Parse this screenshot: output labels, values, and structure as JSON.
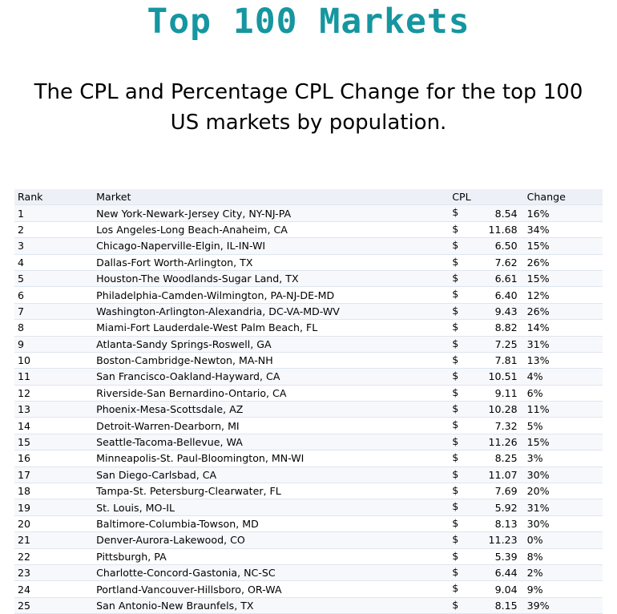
{
  "title": "Top 100 Markets",
  "subtitle_line1": "The CPL and Percentage CPL Change for the top 100",
  "subtitle_line2": "US markets by population.",
  "table": {
    "headers": {
      "rank": "Rank",
      "market": "Market",
      "cpl": "CPL",
      "change": "Change"
    },
    "currency_symbol": "$",
    "rows": [
      {
        "rank": "1",
        "market": "New York-Newark-Jersey City, NY-NJ-PA",
        "cpl": "8.54",
        "change": "16%"
      },
      {
        "rank": "2",
        "market": "Los Angeles-Long Beach-Anaheim, CA",
        "cpl": "11.68",
        "change": "34%"
      },
      {
        "rank": "3",
        "market": "Chicago-Naperville-Elgin, IL-IN-WI",
        "cpl": "6.50",
        "change": "15%"
      },
      {
        "rank": "4",
        "market": "Dallas-Fort Worth-Arlington, TX",
        "cpl": "7.62",
        "change": "26%"
      },
      {
        "rank": "5",
        "market": "Houston-The Woodlands-Sugar Land, TX",
        "cpl": "6.61",
        "change": "15%"
      },
      {
        "rank": "6",
        "market": "Philadelphia-Camden-Wilmington, PA-NJ-DE-MD",
        "cpl": "6.40",
        "change": "12%"
      },
      {
        "rank": "7",
        "market": "Washington-Arlington-Alexandria, DC-VA-MD-WV",
        "cpl": "9.43",
        "change": "26%"
      },
      {
        "rank": "8",
        "market": "Miami-Fort Lauderdale-West Palm Beach, FL",
        "cpl": "8.82",
        "change": "14%"
      },
      {
        "rank": "9",
        "market": "Atlanta-Sandy Springs-Roswell, GA",
        "cpl": "7.25",
        "change": "31%"
      },
      {
        "rank": "10",
        "market": "Boston-Cambridge-Newton, MA-NH",
        "cpl": "7.81",
        "change": "13%"
      },
      {
        "rank": "11",
        "market": "San Francisco-Oakland-Hayward, CA",
        "cpl": "10.51",
        "change": "4%"
      },
      {
        "rank": "12",
        "market": "Riverside-San Bernardino-Ontario, CA",
        "cpl": "9.11",
        "change": "6%"
      },
      {
        "rank": "13",
        "market": "Phoenix-Mesa-Scottsdale, AZ",
        "cpl": "10.28",
        "change": "11%"
      },
      {
        "rank": "14",
        "market": "Detroit-Warren-Dearborn, MI",
        "cpl": "7.32",
        "change": "5%"
      },
      {
        "rank": "15",
        "market": "Seattle-Tacoma-Bellevue, WA",
        "cpl": "11.26",
        "change": "15%"
      },
      {
        "rank": "16",
        "market": "Minneapolis-St. Paul-Bloomington, MN-WI",
        "cpl": "8.25",
        "change": "3%"
      },
      {
        "rank": "17",
        "market": "San Diego-Carlsbad, CA",
        "cpl": "11.07",
        "change": "30%"
      },
      {
        "rank": "18",
        "market": "Tampa-St. Petersburg-Clearwater, FL",
        "cpl": "7.69",
        "change": "20%"
      },
      {
        "rank": "19",
        "market": "St. Louis, MO-IL",
        "cpl": "5.92",
        "change": "31%"
      },
      {
        "rank": "20",
        "market": "Baltimore-Columbia-Towson, MD",
        "cpl": "8.13",
        "change": "30%"
      },
      {
        "rank": "21",
        "market": "Denver-Aurora-Lakewood, CO",
        "cpl": "11.23",
        "change": "0%"
      },
      {
        "rank": "22",
        "market": "Pittsburgh, PA",
        "cpl": "5.39",
        "change": "8%"
      },
      {
        "rank": "23",
        "market": "Charlotte-Concord-Gastonia, NC-SC",
        "cpl": "6.44",
        "change": "2%"
      },
      {
        "rank": "24",
        "market": "Portland-Vancouver-Hillsboro, OR-WA",
        "cpl": "9.04",
        "change": "9%"
      },
      {
        "rank": "25",
        "market": "San Antonio-New Braunfels, TX",
        "cpl": "8.15",
        "change": "39%"
      }
    ]
  },
  "colors": {
    "title": "#1596a0",
    "header_row": "#edf1f7",
    "band_row": "#f6f8fc"
  }
}
